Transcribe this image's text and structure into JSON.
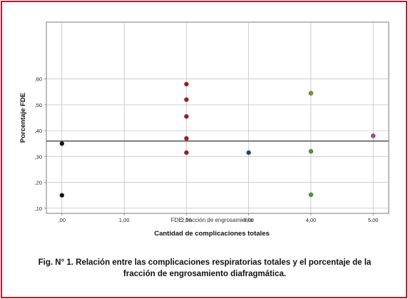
{
  "chart_data": {
    "type": "scatter",
    "xlabel": "Cantidad de complicaciones totales",
    "ylabel": "Porcentaje FDE",
    "xlim": [
      -0.25,
      5.25
    ],
    "ylim": [
      0.08,
      0.82
    ],
    "x_ticks": [
      0,
      1,
      2,
      3,
      4,
      5
    ],
    "x_tick_labels": [
      ",00",
      "1,00",
      "2,00",
      "3,00",
      "4,00",
      "5,00"
    ],
    "y_ticks": [
      0.1,
      0.2,
      0.3,
      0.4,
      0.5,
      0.6
    ],
    "y_tick_labels": [
      ",10",
      ",20",
      ",30",
      ",40",
      ",50",
      ",60"
    ],
    "grid": true,
    "reference_line_y": 0.36,
    "note": "FDE: fracción de engrosamiento",
    "points": [
      {
        "x": 0,
        "y": 0.35,
        "color": "#111111"
      },
      {
        "x": 0,
        "y": 0.15,
        "color": "#111111"
      },
      {
        "x": 2,
        "y": 0.58,
        "color": "#a01c28"
      },
      {
        "x": 2,
        "y": 0.52,
        "color": "#a01c28"
      },
      {
        "x": 2,
        "y": 0.455,
        "color": "#a01c28"
      },
      {
        "x": 2,
        "y": 0.37,
        "color": "#a01c28"
      },
      {
        "x": 2,
        "y": 0.315,
        "color": "#a01c28"
      },
      {
        "x": 3,
        "y": 0.315,
        "color": "#1f3f8a"
      },
      {
        "x": 4,
        "y": 0.545,
        "color": "#8a8a20"
      },
      {
        "x": 4,
        "y": 0.32,
        "color": "#4f9a30"
      },
      {
        "x": 4,
        "y": 0.152,
        "color": "#4f9a30"
      },
      {
        "x": 5,
        "y": 0.38,
        "color": "#b43ca0"
      }
    ]
  },
  "caption": {
    "line1": "Fig. N° 1. Relación entre las complicaciones respiratorias totales y el porcentaje de la",
    "line2": "fracción de engrosamiento diafragmática."
  }
}
